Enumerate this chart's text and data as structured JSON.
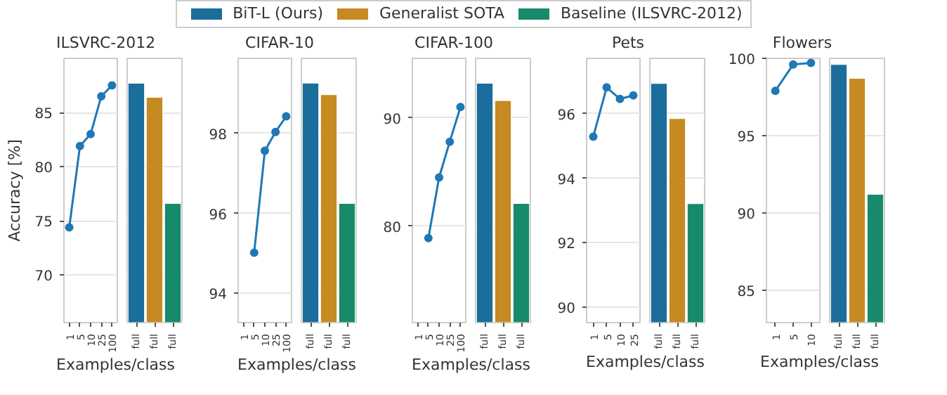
{
  "chart_data": [
    {
      "type": "line",
      "title": "ILSVRC-2012",
      "xlabel": "Examples/class",
      "ylabel": "Accuracy [%]",
      "categories": [
        "1",
        "5",
        "10",
        "25",
        "100"
      ],
      "values": [
        74.4,
        81.9,
        83.0,
        86.5,
        87.5
      ],
      "color": "#1f78b4",
      "marker": "circle",
      "ylim": [
        65.6,
        90.0
      ],
      "yticks": [
        70,
        75,
        80,
        85
      ],
      "grid": "y"
    },
    {
      "type": "bar",
      "categories": [
        "full",
        "full",
        "full"
      ],
      "legend": "top",
      "tick_labels": "x",
      "ylim": [
        65.6,
        90.0
      ],
      "yticks": [
        70,
        75,
        80,
        85
      ],
      "grid": "y",
      "series": [
        {
          "name": "BiT-L (Ours)",
          "color": "#1b6d9b",
          "values": [
            87.7,
            null,
            null
          ]
        },
        {
          "name": "Generalist SOTA",
          "color": "#c68a22",
          "values": [
            null,
            86.4,
            null
          ]
        },
        {
          "name": "Baseline (ILSVRC-2012)",
          "color": "#178a6b",
          "values": [
            null,
            null,
            76.6
          ]
        }
      ]
    },
    {
      "type": "line",
      "title": "CIFAR-10",
      "xlabel": "Examples/class",
      "categories": [
        "1",
        "5",
        "10",
        "25",
        "100"
      ],
      "values": [
        null,
        95.02,
        97.57,
        98.04,
        98.43
      ],
      "color": "#1f78b4",
      "marker": "circle",
      "ylim": [
        93.27,
        99.88
      ],
      "yticks": [
        94,
        96,
        98
      ],
      "grid": "y"
    },
    {
      "type": "bar",
      "categories": [
        "full",
        "full",
        "full"
      ],
      "tick_labels": "x",
      "ylim": [
        93.27,
        99.88
      ],
      "yticks": [
        94,
        96,
        98
      ],
      "grid": "y",
      "series": [
        {
          "color": "#1b6d9b",
          "values": [
            99.26,
            null,
            null
          ]
        },
        {
          "color": "#c68a22",
          "values": [
            null,
            98.97,
            null
          ]
        },
        {
          "color": "#178a6b",
          "values": [
            null,
            null,
            96.25
          ]
        }
      ]
    },
    {
      "type": "line",
      "title": "CIFAR-100",
      "xlabel": "Examples/class",
      "categories": [
        "1",
        "5",
        "10",
        "25",
        "100"
      ],
      "values": [
        null,
        78.9,
        84.5,
        87.8,
        91.0
      ],
      "color": "#1f78b4",
      "marker": "circle",
      "ylim": [
        71.1,
        95.5
      ],
      "yticks": [
        80,
        90
      ],
      "grid": "y"
    },
    {
      "type": "bar",
      "categories": [
        "full",
        "full",
        "full"
      ],
      "tick_labels": "x",
      "ylim": [
        71.1,
        95.5
      ],
      "yticks": [
        80,
        90
      ],
      "grid": "y",
      "series": [
        {
          "color": "#1b6d9b",
          "values": [
            93.2,
            null,
            null
          ]
        },
        {
          "color": "#c68a22",
          "values": [
            null,
            91.6,
            null
          ]
        },
        {
          "color": "#178a6b",
          "values": [
            null,
            null,
            82.1
          ]
        }
      ]
    },
    {
      "type": "line",
      "title": "Pets",
      "xlabel": "Examples/class",
      "categories": [
        "1",
        "5",
        "10",
        "25"
      ],
      "values": [
        95.29,
        96.82,
        96.46,
        96.57
      ],
      "color": "#1f78b4",
      "marker": "circle",
      "ylim": [
        89.52,
        97.72
      ],
      "yticks": [
        90,
        92,
        94,
        96
      ],
      "grid": "y"
    },
    {
      "type": "bar",
      "categories": [
        "full",
        "full",
        "full"
      ],
      "tick_labels": "x",
      "ylim": [
        89.52,
        97.72
      ],
      "yticks": [
        90,
        92,
        94,
        96
      ],
      "grid": "y",
      "series": [
        {
          "color": "#1b6d9b",
          "values": [
            96.94,
            null,
            null
          ]
        },
        {
          "color": "#c68a22",
          "values": [
            null,
            95.85,
            null
          ]
        },
        {
          "color": "#178a6b",
          "values": [
            null,
            null,
            93.21
          ]
        }
      ]
    },
    {
      "type": "line",
      "title": "Flowers",
      "xlabel": "Examples/class",
      "categories": [
        "1",
        "5",
        "10"
      ],
      "values": [
        97.9,
        99.6,
        99.7
      ],
      "color": "#1f78b4",
      "marker": "circle",
      "ylim": [
        82.9,
        100.0
      ],
      "yticks": [
        85,
        90,
        95,
        100
      ],
      "grid": "y"
    },
    {
      "type": "bar",
      "categories": [
        "full",
        "full",
        "full"
      ],
      "tick_labels": "x",
      "ylim": [
        82.9,
        100.0
      ],
      "yticks": [
        85,
        90,
        95,
        100
      ],
      "grid": "y",
      "series": [
        {
          "color": "#1b6d9b",
          "values": [
            99.6,
            null,
            null
          ]
        },
        {
          "color": "#c68a22",
          "values": [
            null,
            98.7,
            null
          ]
        },
        {
          "color": "#178a6b",
          "values": [
            null,
            null,
            91.2
          ]
        }
      ]
    }
  ]
}
